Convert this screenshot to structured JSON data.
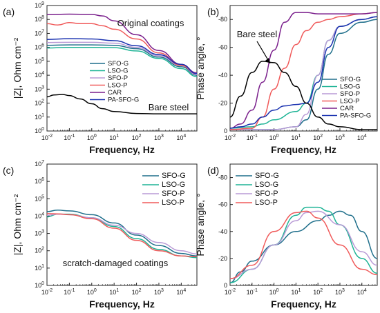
{
  "chart_data": [
    {
      "panel_label": "(a)",
      "type": "line",
      "x_scale": "log",
      "y_scale": "log",
      "xlim": [
        0.01,
        50000
      ],
      "ylim": [
        1,
        1000000000
      ],
      "x_ticks": [
        "10^-2",
        "10^-1",
        "10^0",
        "10^1",
        "10^2",
        "10^3",
        "10^4"
      ],
      "y_ticks": [
        "10^0",
        "10^1",
        "10^2",
        "10^3",
        "10^4",
        "10^5",
        "10^6",
        "10^7",
        "10^8",
        "10^9"
      ],
      "xlabel": "Frequency, Hz",
      "ylabel": "|Z|, Ohm cm⁻²",
      "annotations": [
        "Original coatings",
        "Bare steel"
      ],
      "legend_position": "center-right",
      "series": [
        {
          "name": "SFO-G",
          "color": "#1f6f8b",
          "x": [
            0.01,
            0.1,
            1,
            10,
            100,
            1000,
            10000,
            50000
          ],
          "y": [
            1400000,
            1500000,
            1500000,
            1400000,
            800000,
            200000,
            40000,
            10000
          ]
        },
        {
          "name": "LSO-G",
          "color": "#1fb496",
          "x": [
            0.01,
            0.1,
            1,
            10,
            100,
            1000,
            10000,
            50000
          ],
          "y": [
            900000,
            1000000,
            1000000,
            950000,
            550000,
            160000,
            30000,
            8000
          ]
        },
        {
          "name": "SFO-P",
          "color": "#b99ad6",
          "x": [
            0.01,
            0.1,
            1,
            10,
            100,
            1000,
            10000,
            50000
          ],
          "y": [
            2200000,
            2300000,
            2300000,
            2000000,
            1000000,
            250000,
            50000,
            11000
          ]
        },
        {
          "name": "LSO-P",
          "color": "#f05a5a",
          "x": [
            0.01,
            0.03,
            0.1,
            0.3,
            1,
            3,
            10,
            100,
            1000,
            10000,
            50000
          ],
          "y": [
            50000000,
            40000000,
            60000000,
            50000000,
            50000000,
            35000000,
            20000000,
            4000000,
            400000,
            50000,
            13000
          ]
        },
        {
          "name": "CAR",
          "color": "#7a1f8c",
          "x": [
            0.01,
            0.1,
            1,
            3,
            10,
            100,
            1000,
            10000,
            50000
          ],
          "y": [
            220000000,
            240000000,
            230000000,
            180000000,
            80000000,
            8000000,
            600000,
            60000,
            15000
          ]
        },
        {
          "name": "PA-SFO-G",
          "color": "#1a32b0",
          "x": [
            0.01,
            0.1,
            1,
            10,
            100,
            1000,
            10000,
            50000
          ],
          "y": [
            3700000,
            4200000,
            4000000,
            3000000,
            1300000,
            300000,
            60000,
            13000
          ]
        },
        {
          "name": "Bare steel",
          "color": "#000000",
          "x": [
            0.01,
            0.02,
            0.05,
            0.1,
            0.3,
            1,
            3,
            10,
            100,
            1000,
            10000,
            50000
          ],
          "y": [
            280,
            380,
            420,
            350,
            200,
            90,
            40,
            25,
            18,
            17,
            17,
            17
          ]
        }
      ]
    },
    {
      "panel_label": "(b)",
      "type": "line",
      "x_scale": "log",
      "xlim": [
        0.01,
        50000
      ],
      "ylim": [
        0,
        -90
      ],
      "x_ticks": [
        "10^-2",
        "10^-1",
        "10^0",
        "10^1",
        "10^2",
        "10^3",
        "10^4"
      ],
      "y_ticks": [
        "-80",
        "-60",
        "-40",
        "-20",
        "0"
      ],
      "xlabel": "Frequency, Hz",
      "ylabel": "Phase angle, °",
      "annotations": [
        "Bare steel"
      ],
      "legend_position": "bottom-right",
      "series": [
        {
          "name": "SFO-G",
          "color": "#1f6f8b",
          "x": [
            0.01,
            0.1,
            1,
            10,
            30,
            100,
            300,
            1000,
            10000,
            50000
          ],
          "y": [
            -1,
            -1,
            -1,
            -3,
            -8,
            -30,
            -55,
            -70,
            -78,
            -80
          ]
        },
        {
          "name": "LSO-G",
          "color": "#1fb496",
          "x": [
            0.01,
            0.1,
            0.3,
            1,
            10,
            30,
            100,
            300,
            1000,
            10000,
            50000
          ],
          "y": [
            -2,
            -3,
            -5,
            -8,
            -14,
            -20,
            -40,
            -65,
            -75,
            -80,
            -82
          ]
        },
        {
          "name": "SFO-P",
          "color": "#b99ad6",
          "x": [
            0.01,
            0.1,
            1,
            10,
            30,
            100,
            300,
            1000,
            10000,
            50000
          ],
          "y": [
            -1,
            -1,
            -1,
            -3,
            -12,
            -40,
            -65,
            -75,
            -80,
            -82
          ]
        },
        {
          "name": "LSO-P",
          "color": "#f05a5a",
          "x": [
            0.01,
            0.1,
            0.3,
            1,
            3,
            10,
            30,
            100,
            300,
            1000,
            10000,
            50000
          ],
          "y": [
            -1,
            -2,
            -10,
            -30,
            -45,
            -62,
            -72,
            -78,
            -80,
            -82,
            -84,
            -85
          ]
        },
        {
          "name": "CAR",
          "color": "#7a1f8c",
          "x": [
            0.01,
            0.03,
            0.1,
            0.3,
            1,
            3,
            10,
            30,
            100,
            1000,
            10000,
            50000
          ],
          "y": [
            -2,
            -5,
            -15,
            -35,
            -58,
            -78,
            -85,
            -85,
            -84,
            -84,
            -84,
            -85
          ]
        },
        {
          "name": "PA-SFO-G",
          "color": "#1a32b0",
          "x": [
            0.01,
            0.03,
            0.1,
            0.3,
            1,
            3,
            10,
            30,
            100,
            300,
            1000,
            10000,
            50000
          ],
          "y": [
            -2,
            -3,
            -5,
            -10,
            -15,
            -18,
            -19,
            -20,
            -35,
            -60,
            -75,
            -80,
            -82
          ]
        },
        {
          "name": "Bare steel",
          "color": "#000000",
          "x": [
            0.01,
            0.03,
            0.1,
            0.3,
            1,
            3,
            10,
            30,
            100,
            300,
            1000,
            10000,
            50000
          ],
          "y": [
            -10,
            -25,
            -42,
            -50,
            -49,
            -42,
            -32,
            -20,
            -10,
            -5,
            -3,
            -1,
            -1
          ]
        }
      ]
    },
    {
      "panel_label": "(c)",
      "type": "line",
      "x_scale": "log",
      "y_scale": "log",
      "xlim": [
        0.01,
        50000
      ],
      "ylim": [
        1,
        10000000
      ],
      "x_ticks": [
        "10^-2",
        "10^-1",
        "10^0",
        "10^1",
        "10^2",
        "10^3",
        "10^4"
      ],
      "y_ticks": [
        "10^0",
        "10^1",
        "10^2",
        "10^3",
        "10^4",
        "10^5",
        "10^6",
        "10^7"
      ],
      "xlabel": "Frequency, Hz",
      "ylabel": "|Z|, Ohm cm⁻²",
      "annotations": [
        "scratch-damaged coatings"
      ],
      "legend_position": "top-right",
      "series": [
        {
          "name": "SFO-G",
          "color": "#1f6f8b",
          "x": [
            0.01,
            0.03,
            0.1,
            1,
            10,
            100,
            1000,
            10000,
            50000
          ],
          "y": [
            18000,
            22000,
            20000,
            12000,
            4000,
            800,
            200,
            70,
            50
          ]
        },
        {
          "name": "LSO-G",
          "color": "#1fb496",
          "x": [
            0.01,
            0.03,
            0.1,
            1,
            10,
            100,
            1000,
            10000,
            50000
          ],
          "y": [
            9000,
            13000,
            13000,
            8000,
            2500,
            500,
            120,
            50,
            40
          ]
        },
        {
          "name": "SFO-P",
          "color": "#b99ad6",
          "x": [
            0.01,
            0.03,
            0.1,
            1,
            10,
            100,
            1000,
            10000,
            50000
          ],
          "y": [
            11000,
            13000,
            12000,
            8000,
            3000,
            1000,
            300,
            100,
            65
          ]
        },
        {
          "name": "LSO-P",
          "color": "#f05a5a",
          "x": [
            0.01,
            0.03,
            0.1,
            1,
            10,
            100,
            1000,
            10000,
            50000
          ],
          "y": [
            14000,
            13500,
            12000,
            7000,
            2000,
            400,
            100,
            50,
            45
          ]
        }
      ]
    },
    {
      "panel_label": "(d)",
      "type": "line",
      "x_scale": "log",
      "xlim": [
        0.01,
        50000
      ],
      "ylim": [
        0,
        -90
      ],
      "x_ticks": [
        "10^-2",
        "10^-1",
        "10^0",
        "10^1",
        "10^2",
        "10^3",
        "10^4"
      ],
      "y_ticks": [
        "-80",
        "-60",
        "-40",
        "-20",
        "0"
      ],
      "xlabel": "Frequency, Hz",
      "ylabel": "Phase angle, °",
      "legend_position": "top-left",
      "series": [
        {
          "name": "SFO-G",
          "color": "#1f6f8b",
          "x": [
            0.01,
            0.03,
            0.1,
            1,
            10,
            100,
            300,
            1000,
            3000,
            10000,
            50000
          ],
          "y": [
            -2,
            -10,
            -18,
            -30,
            -40,
            -48,
            -52,
            -55,
            -52,
            -40,
            -20
          ]
        },
        {
          "name": "LSO-G",
          "color": "#1fb496",
          "x": [
            0.01,
            0.1,
            1,
            10,
            30,
            100,
            300,
            1000,
            10000,
            50000
          ],
          "y": [
            -2,
            -12,
            -30,
            -52,
            -58,
            -58,
            -55,
            -45,
            -20,
            -9
          ]
        },
        {
          "name": "SFO-P",
          "color": "#b99ad6",
          "x": [
            0.01,
            0.1,
            1,
            10,
            30,
            100,
            1000,
            10000,
            50000
          ],
          "y": [
            -5,
            -12,
            -30,
            -48,
            -54,
            -55,
            -45,
            -25,
            -15
          ]
        },
        {
          "name": "LSO-P",
          "color": "#f05a5a",
          "x": [
            0.01,
            0.1,
            1,
            10,
            30,
            100,
            1000,
            10000,
            50000
          ],
          "y": [
            -5,
            -15,
            -40,
            -54,
            -55,
            -50,
            -30,
            -12,
            -8
          ]
        }
      ]
    }
  ]
}
